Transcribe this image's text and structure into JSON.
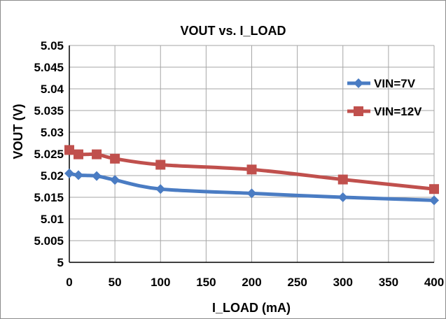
{
  "chart_data": {
    "type": "line",
    "title": "VOUT vs. I_LOAD",
    "xlabel": "I_LOAD (mA)",
    "ylabel": "VOUT (V)",
    "xlim": [
      0,
      400
    ],
    "ylim": [
      5,
      5.05
    ],
    "x_ticks": [
      "0",
      "50",
      "100",
      "150",
      "200",
      "250",
      "300",
      "350",
      "400"
    ],
    "y_ticks": [
      "5",
      "5.005",
      "5.01",
      "5.015",
      "5.02",
      "5.025",
      "5.03",
      "5.035",
      "5.04",
      "5.045",
      "5.05"
    ],
    "grid": true,
    "legend_position": "right",
    "series": [
      {
        "name": "VIN=7V",
        "color": "#4a7cc3",
        "marker": "diamond",
        "x": [
          0,
          10,
          30,
          50,
          100,
          200,
          300,
          400
        ],
        "y": [
          5.0205,
          5.0201,
          5.0199,
          5.019,
          5.0169,
          5.0159,
          5.015,
          5.0143
        ]
      },
      {
        "name": "VIN=12V",
        "color": "#c0504d",
        "marker": "square",
        "x": [
          0,
          10,
          30,
          50,
          100,
          200,
          300,
          400
        ],
        "y": [
          5.0259,
          5.0249,
          5.0249,
          5.0239,
          5.0225,
          5.0214,
          5.0191,
          5.0169
        ]
      }
    ]
  }
}
